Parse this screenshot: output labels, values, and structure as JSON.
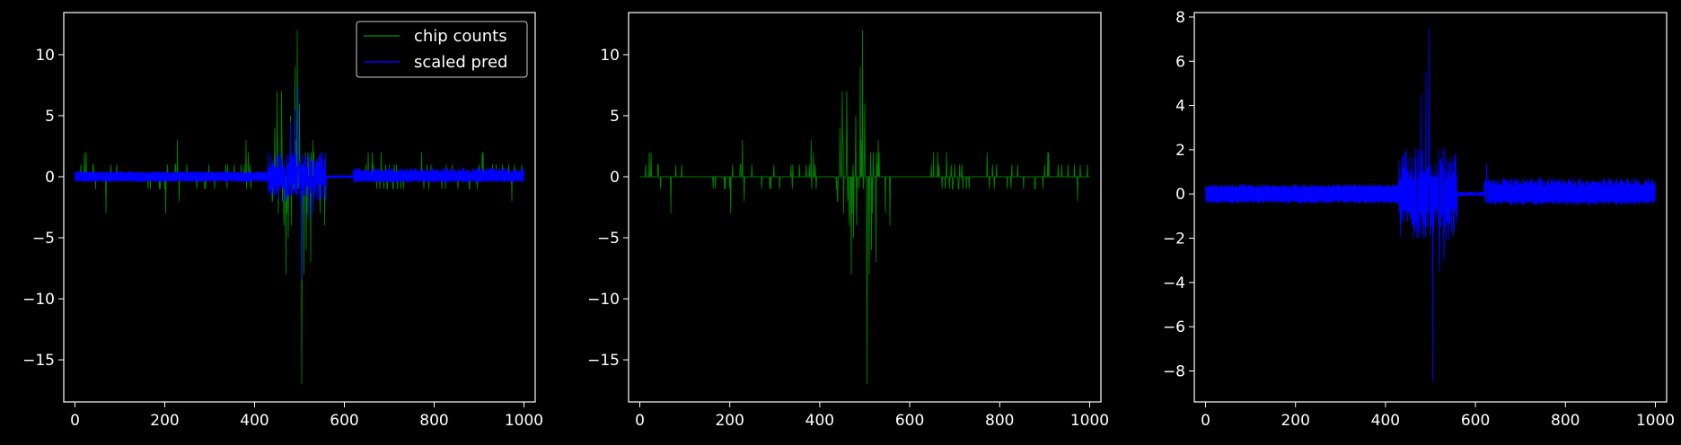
{
  "figure": {
    "background": "#000000",
    "axis_color": "#ffffff",
    "text_color": "#ffffff"
  },
  "chart_data": [
    {
      "type": "line",
      "panel": "left",
      "title": "",
      "xlabel": "",
      "ylabel": "",
      "xlim": [
        -25,
        1025
      ],
      "ylim": [
        -18.45,
        13.45
      ],
      "xticks": [
        0,
        200,
        400,
        600,
        800,
        1000
      ],
      "yticks": [
        -15,
        -10,
        -5,
        0,
        5,
        10
      ],
      "legend": {
        "location": "upper-right",
        "entries": [
          "chip counts",
          "scaled pred"
        ]
      },
      "series": [
        {
          "name": "chip counts",
          "color": "#008000",
          "description": "integer-valued signal, mostly in [-2, 2], spikes near x=490-510",
          "spikes": [
            [
              460,
              7
            ],
            [
              470,
              -8
            ],
            [
              480,
              5
            ],
            [
              490,
              9
            ],
            [
              495,
              12
            ],
            [
              500,
              6
            ],
            [
              505,
              -17
            ],
            [
              510,
              -8
            ],
            [
              515,
              -6
            ],
            [
              525,
              -7
            ],
            [
              530,
              3
            ],
            [
              450,
              7
            ],
            [
              475,
              -5
            ]
          ]
        },
        {
          "name": "scaled pred",
          "color": "#0000ff",
          "description": "continuous envelope roughly [-0.6, 0.6], peak 7.5 at x~497, trough -8.5 at x~505, flat near 0 for x 560-620",
          "spikes": [
            [
              480,
              4.5
            ],
            [
              490,
              5.5
            ],
            [
              497,
              7.5
            ],
            [
              505,
              -8.5
            ],
            [
              520,
              -3.5
            ],
            [
              530,
              -3
            ],
            [
              470,
              -2
            ]
          ]
        }
      ]
    },
    {
      "type": "line",
      "panel": "middle",
      "title": "",
      "xlabel": "",
      "ylabel": "",
      "xlim": [
        -25,
        1025
      ],
      "ylim": [
        -18.45,
        13.45
      ],
      "xticks": [
        0,
        200,
        400,
        600,
        800,
        1000
      ],
      "yticks": [
        -15,
        -10,
        -5,
        0,
        5,
        10
      ],
      "series": [
        {
          "name": "chip counts",
          "color": "#008000",
          "spikes": [
            [
              460,
              7
            ],
            [
              470,
              -8
            ],
            [
              480,
              5
            ],
            [
              490,
              9
            ],
            [
              495,
              12
            ],
            [
              500,
              6
            ],
            [
              505,
              -17
            ],
            [
              510,
              -8
            ],
            [
              515,
              -6
            ],
            [
              525,
              -7
            ],
            [
              530,
              3
            ],
            [
              450,
              7
            ],
            [
              475,
              -5
            ]
          ]
        }
      ]
    },
    {
      "type": "line",
      "panel": "right",
      "title": "",
      "xlabel": "",
      "ylabel": "",
      "xlim": [
        -25,
        1025
      ],
      "ylim": [
        -9.4,
        8.2
      ],
      "xticks": [
        0,
        200,
        400,
        600,
        800,
        1000
      ],
      "yticks": [
        -8,
        -6,
        -4,
        -2,
        0,
        2,
        4,
        6,
        8
      ],
      "series": [
        {
          "name": "scaled pred",
          "color": "#0000ff",
          "spikes": [
            [
              480,
              4.5
            ],
            [
              490,
              5.5
            ],
            [
              497,
              7.5
            ],
            [
              505,
              -8.5
            ],
            [
              520,
              -3.5
            ],
            [
              530,
              -3
            ],
            [
              470,
              -2
            ],
            [
              625,
              1.4
            ]
          ]
        }
      ]
    }
  ]
}
